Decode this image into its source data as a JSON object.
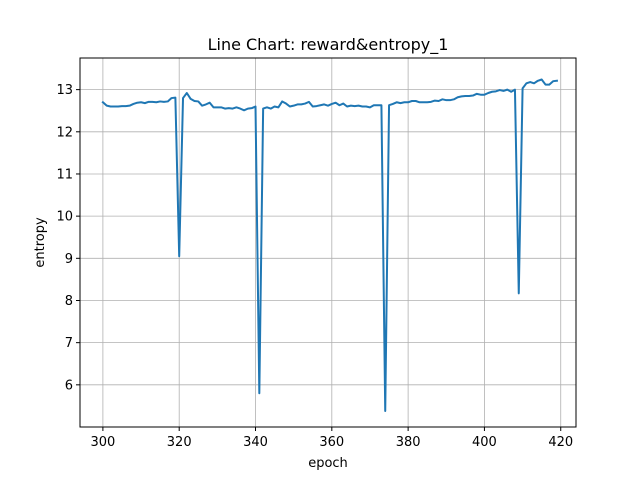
{
  "chart_data": {
    "type": "line",
    "title": "Line Chart: reward&entropy_1",
    "xlabel": "epoch",
    "ylabel": "entropy",
    "xlim": [
      294,
      424
    ],
    "ylim": [
      5.0,
      13.75
    ],
    "xticks": [
      300,
      320,
      340,
      360,
      380,
      400,
      420
    ],
    "yticks": [
      6,
      7,
      8,
      9,
      10,
      11,
      12,
      13
    ],
    "grid": true,
    "series": [
      {
        "name": "entropy",
        "color": "#1f77b4",
        "x": [
          300,
          301,
          302,
          303,
          304,
          305,
          306,
          307,
          308,
          309,
          310,
          311,
          312,
          313,
          314,
          315,
          316,
          317,
          318,
          319,
          320,
          321,
          322,
          323,
          324,
          325,
          326,
          327,
          328,
          329,
          330,
          331,
          332,
          333,
          334,
          335,
          336,
          337,
          338,
          339,
          340,
          341,
          342,
          343,
          344,
          345,
          346,
          347,
          348,
          349,
          350,
          351,
          352,
          353,
          354,
          355,
          356,
          357,
          358,
          359,
          360,
          361,
          362,
          363,
          364,
          365,
          366,
          367,
          368,
          369,
          370,
          371,
          372,
          373,
          374,
          375,
          376,
          377,
          378,
          379,
          380,
          381,
          382,
          383,
          384,
          385,
          386,
          387,
          388,
          389,
          390,
          391,
          392,
          393,
          394,
          395,
          396,
          397,
          398,
          399,
          400,
          401,
          402,
          403,
          404,
          405,
          406,
          407,
          408,
          409,
          410,
          411,
          412,
          413,
          414,
          415,
          416,
          417,
          418,
          419
        ],
        "values": [
          12.7,
          12.62,
          12.6,
          12.6,
          12.6,
          12.61,
          12.61,
          12.62,
          12.66,
          12.69,
          12.7,
          12.68,
          12.71,
          12.71,
          12.7,
          12.72,
          12.71,
          12.72,
          12.8,
          12.81,
          9.05,
          12.8,
          12.92,
          12.78,
          12.73,
          12.72,
          12.62,
          12.65,
          12.69,
          12.58,
          12.58,
          12.58,
          12.55,
          12.56,
          12.55,
          12.58,
          12.55,
          12.51,
          12.55,
          12.56,
          12.6,
          5.8,
          12.55,
          12.58,
          12.55,
          12.6,
          12.58,
          12.72,
          12.67,
          12.6,
          12.62,
          12.65,
          12.65,
          12.67,
          12.71,
          12.6,
          12.61,
          12.63,
          12.65,
          12.62,
          12.66,
          12.69,
          12.63,
          12.67,
          12.6,
          12.62,
          12.61,
          12.62,
          12.6,
          12.6,
          12.58,
          12.63,
          12.63,
          12.63,
          5.38,
          12.63,
          12.66,
          12.7,
          12.68,
          12.7,
          12.7,
          12.73,
          12.73,
          12.7,
          12.7,
          12.7,
          12.71,
          12.74,
          12.73,
          12.77,
          12.75,
          12.75,
          12.77,
          12.82,
          12.84,
          12.85,
          12.85,
          12.86,
          12.9,
          12.88,
          12.88,
          12.92,
          12.95,
          12.96,
          12.99,
          12.97,
          13.0,
          12.95,
          13.0,
          8.17,
          13.03,
          13.15,
          13.18,
          13.15,
          13.21,
          13.24,
          13.12,
          13.12,
          13.2,
          13.21
        ]
      }
    ]
  }
}
